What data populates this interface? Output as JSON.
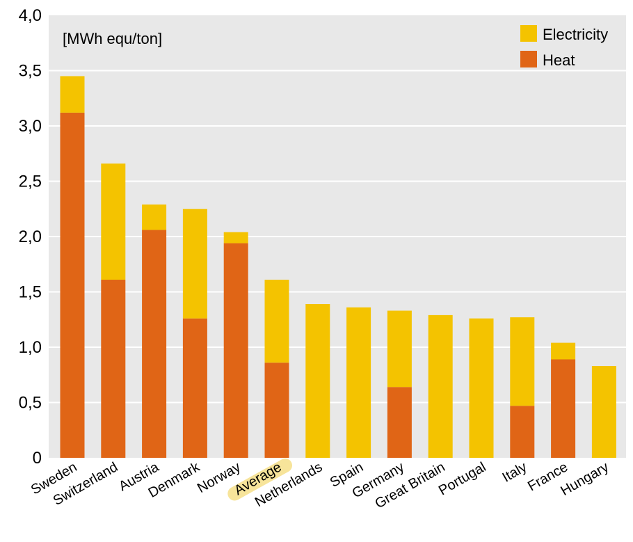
{
  "chart_data": {
    "type": "bar",
    "stacked": true,
    "unit_label": "[MWh equ/ton]",
    "categories": [
      "Sweden",
      "Switzerland",
      "Austria",
      "Denmark",
      "Norway",
      "Average",
      "Netherlands",
      "Spain",
      "Germany",
      "Great Britain",
      "Portugal",
      "Italy",
      "France",
      "Hungary"
    ],
    "highlighted_category": "Average",
    "series": [
      {
        "name": "Heat",
        "color": "#e06516",
        "values": [
          3.12,
          1.61,
          2.06,
          1.26,
          1.94,
          0.86,
          0,
          0,
          0.64,
          0,
          0,
          0.47,
          0.89,
          0
        ]
      },
      {
        "name": "Electricity",
        "color": "#f4c300",
        "values": [
          0.33,
          1.05,
          0.23,
          0.99,
          0.1,
          0.75,
          1.39,
          1.36,
          0.69,
          1.29,
          1.26,
          0.8,
          0.15,
          0.83
        ]
      }
    ],
    "legend": {
      "position": "top-right",
      "items": [
        "Electricity",
        "Heat"
      ]
    },
    "ylim": [
      0,
      4.0
    ],
    "yticks": [
      "0",
      "0,5",
      "1,0",
      "1,5",
      "2,0",
      "2,5",
      "3,0",
      "3,5",
      "4,0"
    ],
    "grid": true,
    "plot_background": "#e8e8e8",
    "highlight_color": "#f7e49a"
  }
}
